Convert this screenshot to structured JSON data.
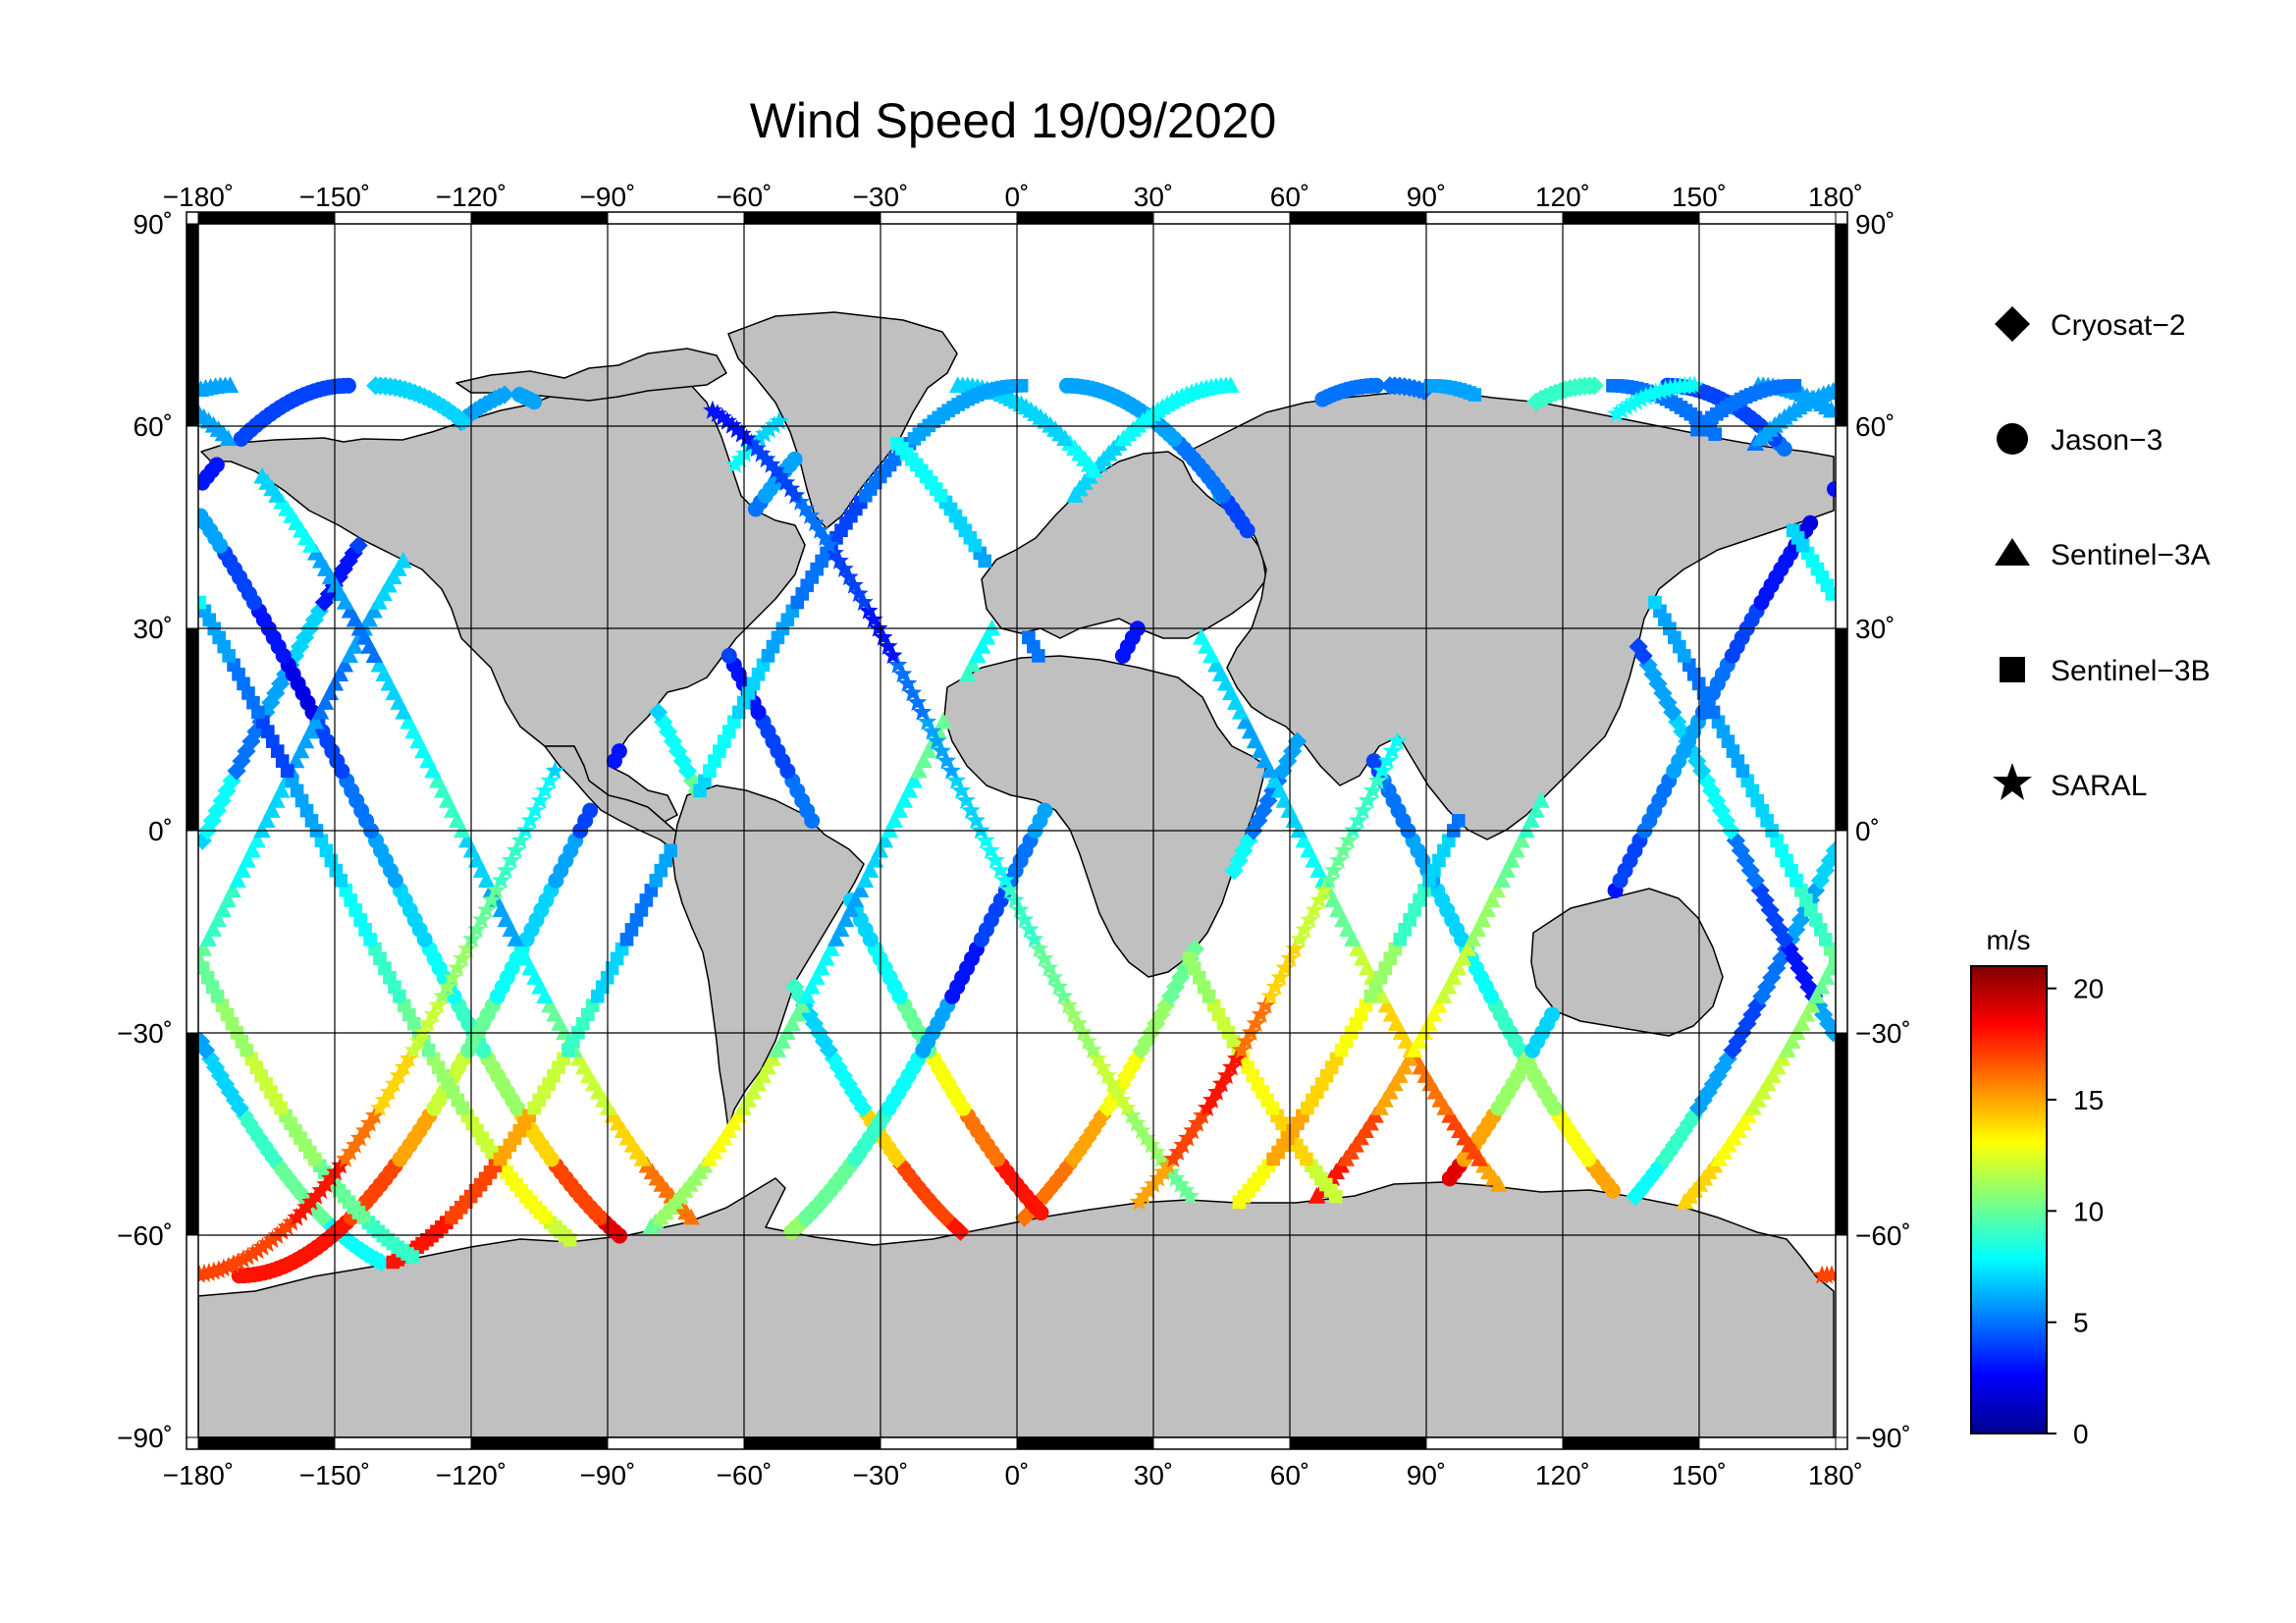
{
  "title": "Wind Speed 19/09/2020",
  "map": {
    "lon_range": [
      -180,
      180
    ],
    "lat_range": [
      -90,
      90
    ],
    "lon_ticks": [
      "−180˚",
      "−150˚",
      "−120˚",
      "−90˚",
      "−60˚",
      "−30˚",
      "0˚",
      "30˚",
      "60˚",
      "90˚",
      "120˚",
      "150˚",
      "180˚"
    ],
    "lat_ticks_left": [
      "90˚",
      "60˚",
      "30˚",
      "0˚",
      "−30˚",
      "−60˚",
      "−90˚"
    ],
    "lat_ticks_right": [
      "90˚",
      "60˚",
      "30˚",
      "0˚",
      "−30˚",
      "−60˚",
      "−90˚"
    ],
    "grid": true,
    "land_color": "#c0c0c0",
    "ocean_color": "#ffffff"
  },
  "legend": {
    "position": "right",
    "items": [
      {
        "label": "Cryosat−2",
        "symbol": "diamond-icon"
      },
      {
        "label": "Jason−3",
        "symbol": "circle-icon"
      },
      {
        "label": "Sentinel−3A",
        "symbol": "triangle-icon"
      },
      {
        "label": "Sentinel−3B",
        "symbol": "square-icon"
      },
      {
        "label": "SARAL",
        "symbol": "star-icon"
      }
    ]
  },
  "colorbar": {
    "unit": "m/s",
    "min": 0,
    "max": 21,
    "ticks": [
      "0",
      "5",
      "10",
      "15",
      "20"
    ],
    "tick_values": [
      0,
      5,
      10,
      15,
      20
    ],
    "colors": [
      "#00008f",
      "#0000ff",
      "#007fff",
      "#00ffff",
      "#7fff7f",
      "#ffff00",
      "#ff7f00",
      "#ff0000",
      "#7f0000"
    ]
  },
  "chart_data": {
    "type": "scatter",
    "title": "Wind Speed 19/09/2020",
    "xlim": [
      -180,
      180
    ],
    "ylim": [
      -90,
      90
    ],
    "value_unit": "m/s",
    "series": [
      {
        "name": "Cryosat−2",
        "marker": "diamond",
        "tracks": [
          {
            "ascending": true,
            "lon0": -178,
            "speeds": [
              6,
              5,
              4,
              3,
              7,
              6,
              5,
              8,
              7,
              6,
              5,
              4,
              6,
              9,
              8,
              7
            ]
          },
          {
            "ascending": false,
            "lon0": -66,
            "speeds": [
              7,
              8,
              9,
              6,
              5,
              7,
              8,
              10,
              12,
              11,
              9,
              7,
              8,
              14,
              17,
              18
            ]
          },
          {
            "ascending": true,
            "lon0": 52,
            "speeds": [
              9,
              10,
              11,
              12,
              8,
              7,
              6,
              5,
              8,
              9,
              10,
              11,
              13,
              15,
              16,
              12
            ]
          },
          {
            "ascending": false,
            "lon0": 157,
            "speeds": [
              5,
              4,
              3,
              3,
              4,
              6,
              7,
              8,
              5,
              4,
              3,
              6,
              7,
              9,
              10,
              8
            ]
          }
        ]
      },
      {
        "name": "Jason−3",
        "marker": "circle",
        "tracks": [
          {
            "ascending": false,
            "lon0": -142,
            "speeds": [
              4,
              5,
              6,
              4,
              3,
              2,
              4,
              5,
              6,
              7,
              8,
              9,
              11,
              14,
              17,
              19
            ]
          },
          {
            "ascending": true,
            "lon0": -96,
            "speeds": [
              5,
              6,
              5,
              4,
              3,
              2,
              3,
              4,
              6,
              7,
              8,
              10,
              12,
              15,
              17,
              18
            ]
          },
          {
            "ascending": false,
            "lon0": -44,
            "speeds": [
              6,
              7,
              6,
              5,
              4,
              3,
              4,
              5,
              6,
              7,
              8,
              10,
              13,
              16,
              18,
              19
            ]
          },
          {
            "ascending": true,
            "lon0": 4,
            "speeds": [
              5,
              6,
              5,
              4,
              3,
              4,
              5,
              6,
              5,
              4,
              3,
              6,
              8,
              9,
              10,
              11
            ]
          },
          {
            "ascending": false,
            "lon0": 86,
            "speeds": [
              6,
              5,
              4,
              3,
              2,
              3,
              4,
              5,
              6,
              7,
              8,
              9,
              11,
              13,
              15,
              16
            ]
          },
          {
            "ascending": true,
            "lon0": 138,
            "speeds": [
              4,
              3,
              2,
              3,
              4,
              5,
              6,
              5,
              4,
              3,
              5,
              7,
              11,
              15,
              19,
              20
            ]
          }
        ]
      },
      {
        "name": "Sentinel−3A",
        "marker": "triangle",
        "tracks": [
          {
            "ascending": true,
            "lon0": -166,
            "speeds": [
              7,
              8,
              9,
              7,
              6,
              5,
              6,
              7,
              8,
              9,
              10,
              11,
              12,
              13,
              14,
              12
            ]
          },
          {
            "ascending": false,
            "lon0": -122,
            "speeds": [
              6,
              7,
              8,
              6,
              5,
              7,
              8,
              9,
              7,
              6,
              8,
              10,
              12,
              14,
              16,
              18
            ]
          },
          {
            "ascending": true,
            "lon0": -28,
            "speeds": [
              8,
              7,
              6,
              7,
              8,
              9,
              10,
              8,
              7,
              6,
              8,
              10,
              12,
              13,
              11,
              10
            ]
          },
          {
            "ascending": false,
            "lon0": 62,
            "speeds": [
              7,
              8,
              9,
              10,
              8,
              7,
              6,
              7,
              8,
              10,
              12,
              14,
              16,
              17,
              15,
              13
            ]
          },
          {
            "ascending": true,
            "lon0": 112,
            "speeds": [
              6,
              5,
              4,
              5,
              6,
              7,
              8,
              9,
              10,
              11,
              12,
              13,
              15,
              17,
              18,
              16
            ]
          }
        ]
      },
      {
        "name": "Sentinel−3B",
        "marker": "square",
        "tracks": [
          {
            "ascending": false,
            "lon0": -154,
            "speeds": [
              5,
              6,
              7,
              8,
              6,
              5,
              4,
              6,
              7,
              8,
              9,
              10,
              11,
              12,
              13,
              12
            ]
          },
          {
            "ascending": true,
            "lon0": -74,
            "speeds": [
              6,
              5,
              4,
              5,
              6,
              7,
              8,
              7,
              6,
              5,
              7,
              9,
              12,
              15,
              17,
              18
            ]
          },
          {
            "ascending": false,
            "lon0": 24,
            "speeds": [
              7,
              8,
              7,
              6,
              5,
              6,
              7,
              8,
              9,
              10,
              11,
              12,
              13,
              14,
              12,
              10
            ]
          },
          {
            "ascending": true,
            "lon0": 96,
            "speeds": [
              5,
              6,
              7,
              6,
              5,
              4,
              3,
              5,
              7,
              9,
              11,
              13,
              14,
              15,
              13,
              11
            ]
          },
          {
            "ascending": false,
            "lon0": 166,
            "speeds": [
              6,
              7,
              8,
              7,
              6,
              5,
              6,
              7,
              8,
              9,
              10,
              11,
              12,
              11,
              10,
              9
            ]
          }
        ]
      },
      {
        "name": "SARAL",
        "marker": "star",
        "tracks": [
          {
            "ascending": true,
            "lon0": -108,
            "speeds": [
              7,
              8,
              9,
              8,
              7,
              6,
              7,
              8,
              9,
              10,
              11,
              12,
              14,
              16,
              18,
              17
            ]
          },
          {
            "ascending": false,
            "lon0": -8,
            "speeds": [
              3,
              4,
              5,
              4,
              3,
              5,
              6,
              7,
              8,
              9,
              10,
              11,
              12,
              11,
              10,
              9
            ]
          },
          {
            "ascending": true,
            "lon0": 74,
            "speeds": [
              8,
              9,
              10,
              9,
              8,
              7,
              8,
              9,
              10,
              12,
              14,
              16,
              18,
              17,
              15,
              13
            ]
          }
        ]
      }
    ]
  }
}
